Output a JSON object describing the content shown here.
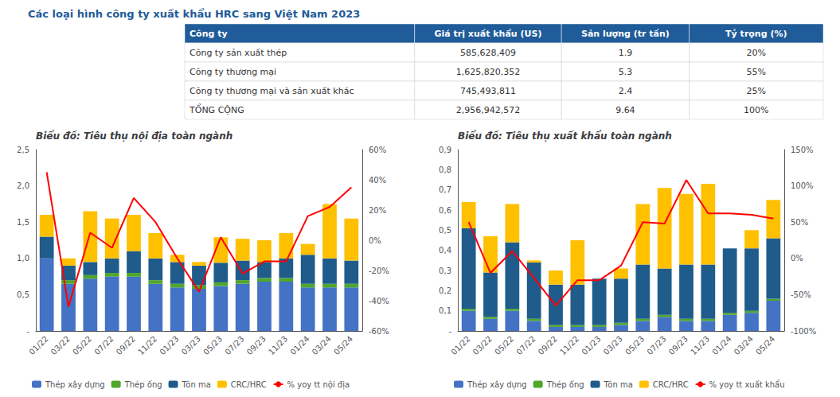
{
  "chart_data": [
    {
      "type": "table",
      "title": "Các loại hình công ty xuất khẩu HRC sang Việt Nam 2023",
      "color": "#1F5C99",
      "headers": [
        "Công ty",
        "Giá trị xuất khẩu (US)",
        "Sản lượng (tr tấn)",
        "Tỷ trọng (%)"
      ],
      "rows": [
        [
          "Công ty sản xuất thép",
          "585,628,409",
          "1.9",
          "20%"
        ],
        [
          "Công ty thương mại",
          "1,625,820,352",
          "5.3",
          "55%"
        ],
        [
          "Công ty thương mại và sản xuất khác",
          "745,493,811",
          "2.4",
          "25%"
        ],
        [
          "TỔNG CỘNG",
          "2,956,942,572",
          "9.64",
          "100%"
        ]
      ]
    },
    {
      "type": "bar",
      "title": "Biểu đồ: Tiêu thụ nội địa toàn ngành",
      "stacked": true,
      "grid": false,
      "legend": "bottom",
      "categories": [
        "01/22",
        "03/22",
        "05/22",
        "07/22",
        "09/22",
        "11/22",
        "01/23",
        "03/23",
        "05/23",
        "07/23",
        "09/23",
        "11/23",
        "01/24",
        "03/24",
        "05/24"
      ],
      "series": [
        {
          "name": "Thép xây dựng",
          "color": "#4472C4",
          "values": [
            1.0,
            0.65,
            0.72,
            0.75,
            0.75,
            0.65,
            0.6,
            0.58,
            0.62,
            0.65,
            0.68,
            0.68,
            0.6,
            0.6,
            0.6
          ]
        },
        {
          "name": "Thép ống",
          "color": "#4EA72A",
          "values": [
            0.0,
            0.05,
            0.05,
            0.05,
            0.05,
            0.05,
            0.05,
            0.05,
            0.05,
            0.05,
            0.05,
            0.05,
            0.05,
            0.05,
            0.05
          ]
        },
        {
          "name": "Tôn ma",
          "color": "#1F5C8B",
          "values": [
            0.3,
            0.2,
            0.18,
            0.2,
            0.3,
            0.3,
            0.3,
            0.27,
            0.27,
            0.27,
            0.22,
            0.27,
            0.4,
            0.35,
            0.32
          ]
        },
        {
          "name": "CRC/HRC",
          "color": "#FFC000",
          "values": [
            0.3,
            0.1,
            0.7,
            0.55,
            0.5,
            0.35,
            0.1,
            0.05,
            0.35,
            0.3,
            0.3,
            0.35,
            0.15,
            0.75,
            0.58
          ]
        },
        {
          "name": "% yoy tt nội địa",
          "type": "line",
          "axis": "y2",
          "color": "#FF0000",
          "values": [
            0.45,
            -0.44,
            0.05,
            -0.05,
            0.28,
            0.12,
            -0.12,
            -0.34,
            0.02,
            -0.22,
            -0.14,
            -0.14,
            0.16,
            0.22,
            0.35
          ]
        }
      ],
      "ylim": [
        0,
        2.5
      ],
      "yticks": [
        {
          "value": 0.0,
          "label": "-"
        },
        {
          "value": 0.5,
          "label": "0,5"
        },
        {
          "value": 1.0,
          "label": "1,0"
        },
        {
          "value": 1.5,
          "label": "1,5"
        },
        {
          "value": 2.0,
          "label": "2,0"
        },
        {
          "value": 2.5,
          "label": "2,5"
        }
      ],
      "y2lim": [
        -0.6,
        0.6
      ],
      "y2ticks": [
        {
          "value": -0.6,
          "label": "-60%"
        },
        {
          "value": -0.4,
          "label": "-40%"
        },
        {
          "value": -0.2,
          "label": "-20%"
        },
        {
          "value": 0.0,
          "label": "0%"
        },
        {
          "value": 0.2,
          "label": "20%"
        },
        {
          "value": 0.4,
          "label": "40%"
        },
        {
          "value": 0.6,
          "label": "60%"
        }
      ]
    },
    {
      "type": "bar",
      "title": "Biểu đồ: Tiêu thụ xuất khẩu toàn ngành",
      "stacked": true,
      "grid": false,
      "legend": "bottom",
      "categories": [
        "01/22",
        "03/22",
        "05/22",
        "07/22",
        "09/22",
        "11/22",
        "01/23",
        "03/23",
        "05/23",
        "07/23",
        "09/23",
        "11/23",
        "01/24",
        "03/24",
        "05/24"
      ],
      "series": [
        {
          "name": "Thép xây dựng",
          "color": "#4472C4",
          "values": [
            0.1,
            0.06,
            0.1,
            0.05,
            0.02,
            0.02,
            0.02,
            0.03,
            0.05,
            0.07,
            0.05,
            0.05,
            0.08,
            0.09,
            0.15
          ]
        },
        {
          "name": "Thép ống",
          "color": "#4EA72A",
          "values": [
            0.01,
            0.01,
            0.01,
            0.01,
            0.01,
            0.01,
            0.01,
            0.01,
            0.01,
            0.01,
            0.01,
            0.01,
            0.01,
            0.01,
            0.01
          ]
        },
        {
          "name": "Tôn ma",
          "color": "#1F5C8B",
          "values": [
            0.4,
            0.22,
            0.33,
            0.28,
            0.2,
            0.2,
            0.23,
            0.22,
            0.27,
            0.23,
            0.27,
            0.27,
            0.32,
            0.31,
            0.3
          ]
        },
        {
          "name": "CRC/HRC",
          "color": "#FFC000",
          "values": [
            0.13,
            0.18,
            0.19,
            0.01,
            0.07,
            0.22,
            0.0,
            0.05,
            0.3,
            0.4,
            0.35,
            0.4,
            0.0,
            0.09,
            0.19
          ]
        },
        {
          "name": "% yoy tt xuất khẩu",
          "type": "line",
          "axis": "y2",
          "color": "#FF0000",
          "values": [
            0.5,
            -0.2,
            0.1,
            -0.27,
            -0.65,
            -0.3,
            -0.3,
            -0.1,
            0.5,
            0.48,
            1.08,
            0.62,
            0.62,
            0.6,
            0.55
          ]
        }
      ],
      "ylim": [
        0,
        0.9
      ],
      "yticks": [
        {
          "value": 0.0,
          "label": "-"
        },
        {
          "value": 0.1,
          "label": "0,1"
        },
        {
          "value": 0.2,
          "label": "0,2"
        },
        {
          "value": 0.3,
          "label": "0,3"
        },
        {
          "value": 0.4,
          "label": "0,4"
        },
        {
          "value": 0.5,
          "label": "0,5"
        },
        {
          "value": 0.6,
          "label": "0,6"
        },
        {
          "value": 0.7,
          "label": "0,7"
        },
        {
          "value": 0.8,
          "label": "0,8"
        },
        {
          "value": 0.9,
          "label": "0,9"
        }
      ],
      "y2lim": [
        -1.0,
        1.5
      ],
      "y2ticks": [
        {
          "value": -1.0,
          "label": "-100%"
        },
        {
          "value": -0.5,
          "label": "-50%"
        },
        {
          "value": 0.0,
          "label": "0%"
        },
        {
          "value": 0.5,
          "label": "50%"
        },
        {
          "value": 1.0,
          "label": "100%"
        },
        {
          "value": 1.5,
          "label": "150%"
        }
      ]
    }
  ]
}
